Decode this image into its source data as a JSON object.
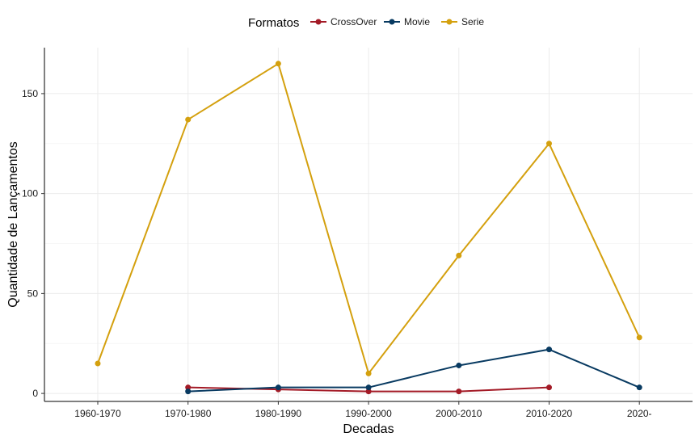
{
  "chart_data": {
    "type": "line",
    "title": "",
    "xlabel": "Decadas",
    "ylabel": "Quantidade de Lançamentos",
    "categories": [
      "1960-1970",
      "1970-1980",
      "1980-1990",
      "1990-2000",
      "2000-2010",
      "2010-2020",
      "2020-"
    ],
    "ylim": [
      -4,
      173
    ],
    "yticks": [
      0,
      50,
      100,
      150
    ],
    "grid": true,
    "legend": {
      "title": "Formatos",
      "position": "top"
    },
    "series": [
      {
        "name": "CrossOver",
        "color": "#a31a26",
        "values": [
          null,
          3,
          2,
          1,
          1,
          3,
          null
        ]
      },
      {
        "name": "Movie",
        "color": "#083a61",
        "values": [
          null,
          1,
          3,
          3,
          14,
          22,
          3
        ]
      },
      {
        "name": "Serie",
        "color": "#d4a00e",
        "values": [
          15,
          137,
          165,
          10,
          69,
          125,
          28
        ]
      }
    ]
  }
}
